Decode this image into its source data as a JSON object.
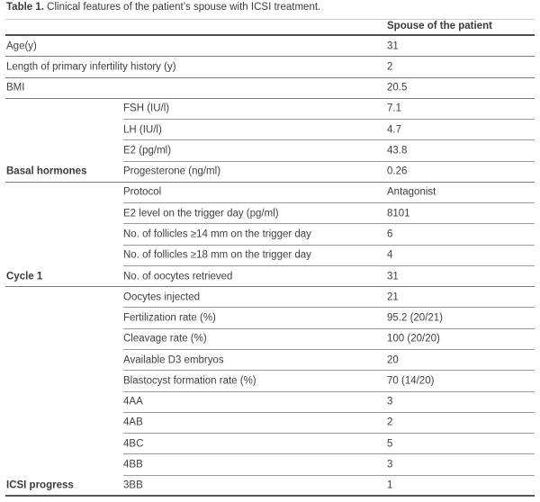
{
  "caption": {
    "label": "Table 1.",
    "text": "Clinical features of the patient’s spouse with ICSI treatment."
  },
  "table": {
    "value_column_header": "Spouse of the patient",
    "rows": [
      {
        "group": "",
        "attribute": "Age(y)",
        "value": "31",
        "top_level": true
      },
      {
        "group": "",
        "attribute": "Length of primary infertility history (y)",
        "value": "2",
        "top_level": true
      },
      {
        "group": "",
        "attribute": "BMI",
        "value": "20.5",
        "top_level": true
      },
      {
        "group": "",
        "attribute": "FSH (IU/l)",
        "value": "7.1",
        "top_level": false
      },
      {
        "group": "",
        "attribute": "LH (IU/l)",
        "value": "4.7",
        "top_level": false
      },
      {
        "group": "",
        "attribute": "E2 (pg/ml)",
        "value": "43.8",
        "top_level": false
      },
      {
        "group": "Basal hormones",
        "attribute": "Progesterone (ng/ml)",
        "value": "0.26",
        "top_level": false
      },
      {
        "group": "",
        "attribute": "Protocol",
        "value": "Antagonist",
        "top_level": false
      },
      {
        "group": "",
        "attribute": "E2 level on the trigger day (pg/ml)",
        "value": "8101",
        "top_level": false
      },
      {
        "group": "",
        "attribute": "No. of follicles ≥14 mm on the trigger day",
        "value": "6",
        "top_level": false
      },
      {
        "group": "",
        "attribute": "No. of follicles ≥18 mm on the trigger day",
        "value": "4",
        "top_level": false
      },
      {
        "group": "Cycle 1",
        "attribute": "No. of oocytes retrieved",
        "value": "31",
        "top_level": false
      },
      {
        "group": "",
        "attribute": "Oocytes injected",
        "value": "21",
        "top_level": false
      },
      {
        "group": "",
        "attribute": "Fertilization rate (%)",
        "value": "95.2 (20/21)",
        "top_level": false
      },
      {
        "group": "",
        "attribute": "Cleavage rate (%)",
        "value": "100 (20/20)",
        "top_level": false
      },
      {
        "group": "",
        "attribute": "Available D3 embryos",
        "value": "20",
        "top_level": false
      },
      {
        "group": "",
        "attribute": "Blastocyst formation rate (%)",
        "value": "70 (14/20)",
        "top_level": false
      },
      {
        "group": "",
        "attribute": "4AA",
        "value": "3",
        "top_level": false
      },
      {
        "group": "",
        "attribute": "4AB",
        "value": "2",
        "top_level": false
      },
      {
        "group": "",
        "attribute": "4BC",
        "value": "5",
        "top_level": false
      },
      {
        "group": "",
        "attribute": "4BB",
        "value": "3",
        "top_level": false
      },
      {
        "group": "ICSI progress",
        "attribute": "3BB",
        "value": "1",
        "top_level": false
      }
    ]
  },
  "colors": {
    "text": "#404040",
    "rule_light": "#9a9a9a",
    "rule_dark": "#565656",
    "background": "#ffffff"
  }
}
